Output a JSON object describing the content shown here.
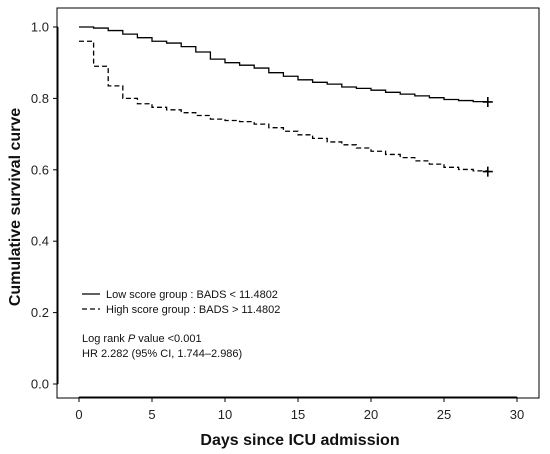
{
  "chart_data": {
    "type": "line",
    "chart_style": "kaplan-meier step curve",
    "xlabel": "Days since ICU admission",
    "ylabel": "Cumulative survival curve",
    "xlim": [
      0,
      30
    ],
    "ylim": [
      0.0,
      1.0
    ],
    "x_ticks": [
      "0",
      "5",
      "10",
      "15",
      "20",
      "25",
      "30"
    ],
    "y_ticks": [
      "0.0",
      "0.2",
      "0.4",
      "0.6",
      "0.8",
      "1.0"
    ],
    "grid": false,
    "legend_position": "lower-left",
    "series": [
      {
        "name": "Low score group : BADS < 11.4802",
        "line_style": "solid",
        "color": "#000000",
        "censor_marker": {
          "x": 28,
          "y": 0.79
        },
        "points": [
          [
            0,
            1.0
          ],
          [
            1,
            0.997
          ],
          [
            2,
            0.99
          ],
          [
            3,
            0.98
          ],
          [
            4,
            0.97
          ],
          [
            5,
            0.96
          ],
          [
            6,
            0.955
          ],
          [
            7,
            0.945
          ],
          [
            8,
            0.93
          ],
          [
            9,
            0.91
          ],
          [
            10,
            0.9
          ],
          [
            11,
            0.893
          ],
          [
            12,
            0.885
          ],
          [
            13,
            0.872
          ],
          [
            14,
            0.862
          ],
          [
            15,
            0.852
          ],
          [
            16,
            0.845
          ],
          [
            17,
            0.84
          ],
          [
            18,
            0.832
          ],
          [
            19,
            0.828
          ],
          [
            20,
            0.823
          ],
          [
            21,
            0.817
          ],
          [
            22,
            0.812
          ],
          [
            23,
            0.807
          ],
          [
            24,
            0.802
          ],
          [
            25,
            0.797
          ],
          [
            26,
            0.794
          ],
          [
            27,
            0.791
          ],
          [
            28,
            0.79
          ]
        ]
      },
      {
        "name": "High score group : BADS > 11.4802",
        "line_style": "dashed",
        "color": "#000000",
        "censor_marker": {
          "x": 28,
          "y": 0.595
        },
        "points": [
          [
            0,
            0.96
          ],
          [
            1,
            0.89
          ],
          [
            2,
            0.835
          ],
          [
            3,
            0.8
          ],
          [
            4,
            0.785
          ],
          [
            5,
            0.775
          ],
          [
            6,
            0.768
          ],
          [
            7,
            0.76
          ],
          [
            8,
            0.752
          ],
          [
            9,
            0.742
          ],
          [
            10,
            0.738
          ],
          [
            11,
            0.735
          ],
          [
            12,
            0.728
          ],
          [
            13,
            0.718
          ],
          [
            14,
            0.708
          ],
          [
            15,
            0.698
          ],
          [
            16,
            0.688
          ],
          [
            17,
            0.678
          ],
          [
            18,
            0.67
          ],
          [
            19,
            0.661
          ],
          [
            20,
            0.652
          ],
          [
            21,
            0.643
          ],
          [
            22,
            0.634
          ],
          [
            23,
            0.625
          ],
          [
            24,
            0.616
          ],
          [
            25,
            0.607
          ],
          [
            26,
            0.601
          ],
          [
            27,
            0.597
          ],
          [
            28,
            0.595
          ]
        ]
      }
    ],
    "annotations": [
      {
        "type": "rich",
        "parts": [
          {
            "text": "Log rank ",
            "italic": false
          },
          {
            "text": "P",
            "italic": true
          },
          {
            "text": " value <0.001",
            "italic": false
          }
        ]
      },
      {
        "type": "plain",
        "text": "HR 2.282 (95% CI, 1.744–2.986)"
      }
    ]
  }
}
